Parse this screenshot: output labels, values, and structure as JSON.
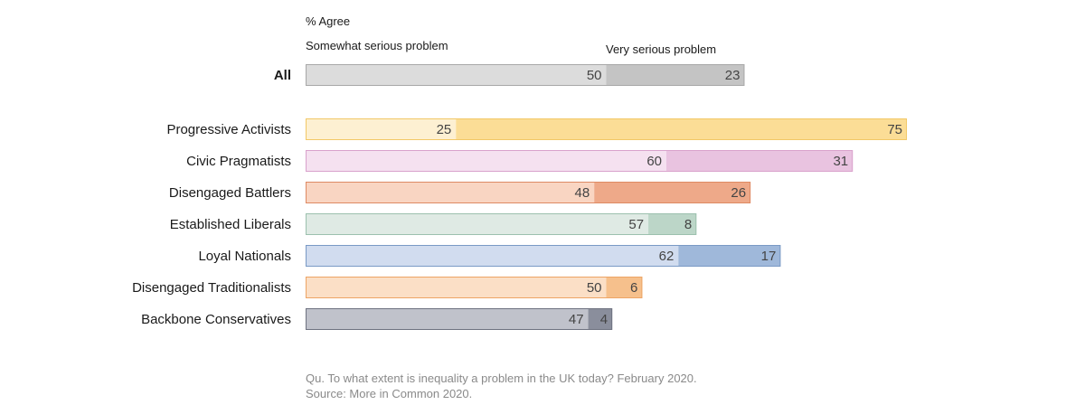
{
  "header": {
    "measure": "% Agree",
    "legend_somewhat": "Somewhat serious problem",
    "legend_very": "Very serious problem"
  },
  "footer": {
    "question": "Qu. To what extent is inequality a problem in the UK today? February 2020.",
    "source": "Source: More in Common 2020."
  },
  "chart_data": {
    "type": "bar",
    "orientation": "horizontal",
    "stacked": true,
    "categories": [
      "All",
      "Progressive Activists",
      "Civic Pragmatists",
      "Disengaged Battlers",
      "Established Liberals",
      "Loyal Nationals",
      "Disengaged Traditionalists",
      "Backbone Conservatives"
    ],
    "series": [
      {
        "name": "Somewhat serious problem",
        "values": [
          50,
          25,
          60,
          48,
          57,
          62,
          50,
          47
        ]
      },
      {
        "name": "Very serious problem",
        "values": [
          23,
          75,
          31,
          26,
          8,
          17,
          6,
          4
        ]
      }
    ],
    "xlim": [
      0,
      100
    ],
    "colors": [
      {
        "light": "#dcdcdc",
        "dark": "#c4c4c4",
        "border": "#a8a8a8"
      },
      {
        "light": "#fdf0d2",
        "dark": "#fbdd96",
        "border": "#f2c867"
      },
      {
        "light": "#f5e1f0",
        "dark": "#e9c3e0",
        "border": "#d9a2cc"
      },
      {
        "light": "#f9d5c2",
        "dark": "#eea989",
        "border": "#de8a64"
      },
      {
        "light": "#dfeae4",
        "dark": "#bcd6c8",
        "border": "#9cc1ae"
      },
      {
        "light": "#d1dcef",
        "dark": "#9fb8da",
        "border": "#7a9ac5"
      },
      {
        "light": "#fbdfc6",
        "dark": "#f6c08c",
        "border": "#eda465"
      },
      {
        "light": "#c0c2cb",
        "dark": "#8a8e9c",
        "border": "#6e7280"
      }
    ],
    "bold_categories": [
      "All"
    ],
    "grid": false,
    "legend": "top"
  }
}
